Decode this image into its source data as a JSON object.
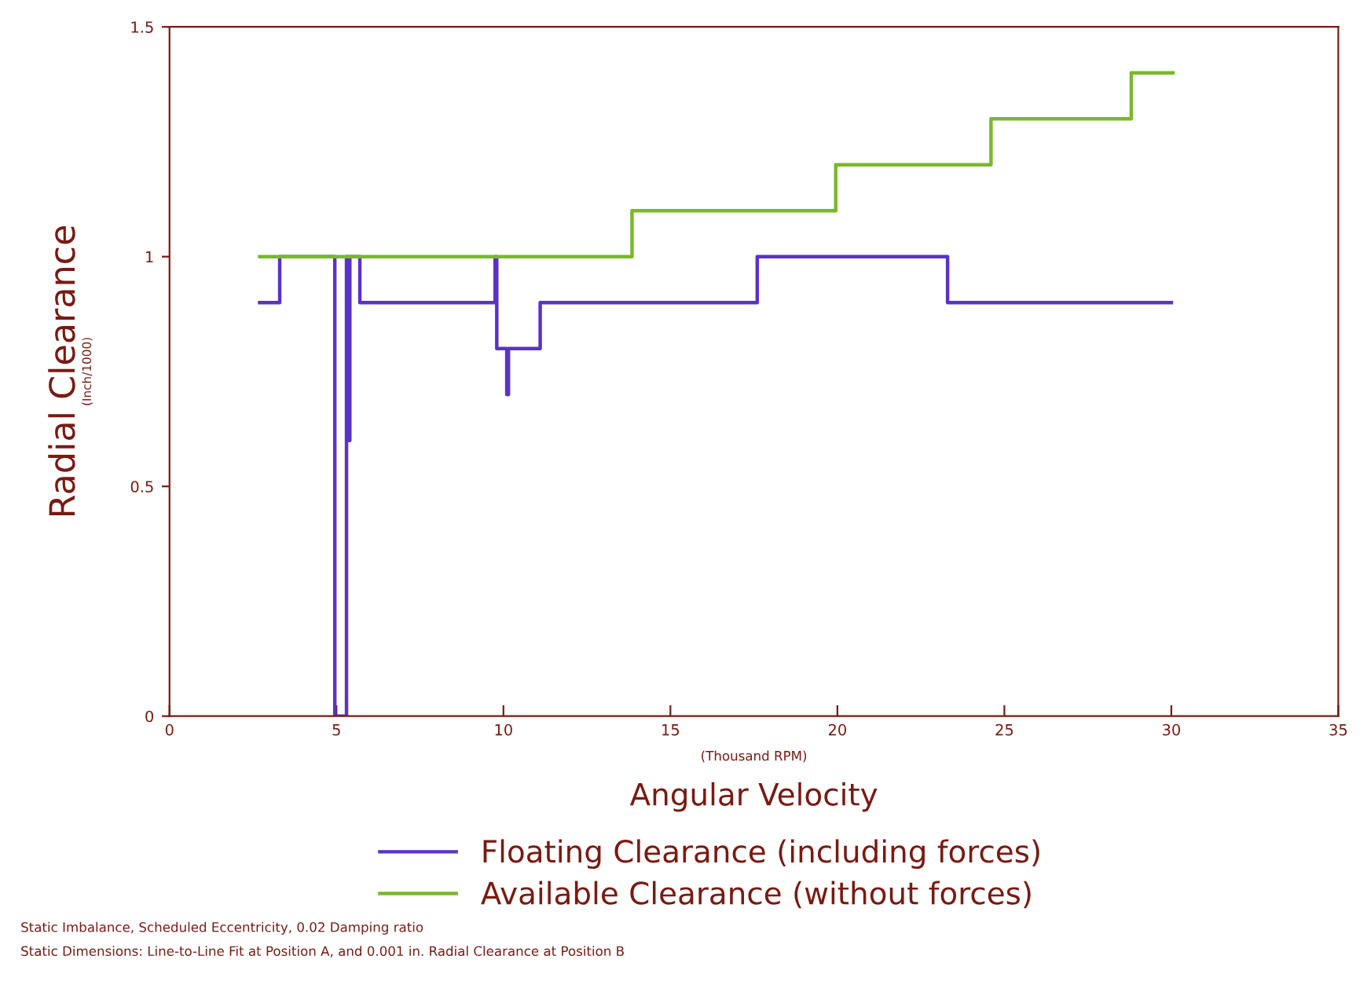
{
  "chart_data": {
    "type": "step",
    "xlabel": "Angular Velocity",
    "ylabel": "Radial Clearance",
    "xlim": [
      0,
      35
    ],
    "xticks": [
      0,
      5,
      10,
      15,
      20,
      25,
      30,
      35
    ],
    "ylim": [
      0,
      1.5
    ],
    "yticks": [
      0,
      0.5,
      1,
      1.5
    ],
    "series": [
      {
        "name": "Floating Clearance (including forces)",
        "color": "#5a32c8",
        "x": [
          2.7,
          3.3,
          4.95,
          5.3,
          5.35,
          5.4,
          5.7,
          9.75,
          9.8,
          10.1,
          10.15,
          11.1,
          17.6,
          23.3,
          30.0
        ],
        "values": [
          0.9,
          1.0,
          0,
          1.0,
          0.6,
          1.0,
          0.9,
          1.0,
          0.8,
          0.7,
          0.8,
          0.9,
          1.0,
          0.9,
          0.9
        ]
      },
      {
        "name": "Available Clearance (without forces)",
        "color": "#7ab82c",
        "x": [
          2.7,
          13.85,
          19.95,
          24.6,
          28.8,
          30.05
        ],
        "values": [
          1.0,
          1.1,
          1.2,
          1.3,
          1.4,
          1.4
        ]
      }
    ],
    "legend": "bottom",
    "grid": false,
    "marker": "none",
    "line_style": "solid",
    "annotations": [
      "(Inch/1000)",
      "(Thousand RPM)",
      "Static Imbalance, Scheduled Eccentricity, 0.02 Damping ratio",
      "Static Dimensions: Line-to-Line Fit at Position A, and 0.001 in. Radial Clearance at Position B"
    ]
  }
}
